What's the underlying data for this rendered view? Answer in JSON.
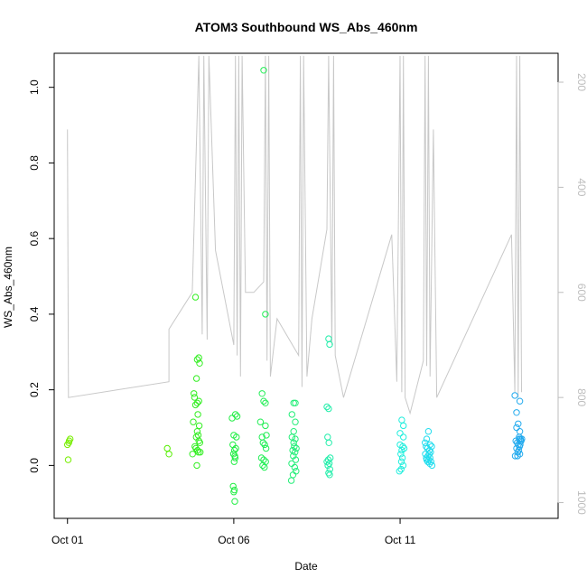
{
  "chart_data": {
    "type": "scatter",
    "title": "ATOM3 Southbound WS_Abs_460nm",
    "xlabel": "Date",
    "ylabel": "WS_Abs_460nm",
    "xlim": [
      -0.4,
      14.75
    ],
    "ylim": [
      -0.14,
      1.09
    ],
    "x_ticks": [
      {
        "value": 0,
        "label": "Oct 01"
      },
      {
        "value": 5,
        "label": "Oct 06"
      },
      {
        "value": 10,
        "label": "Oct 11"
      }
    ],
    "y_ticks": [
      0.0,
      0.2,
      0.4,
      0.6,
      0.8,
      1.0
    ],
    "y_tick_labels": [
      "0.0",
      "0.2",
      "0.4",
      "0.6",
      "0.8",
      "1.0"
    ],
    "right_axis": {
      "label": "",
      "reversed": true,
      "lim": [
        1030,
        145
      ],
      "ticks": [
        200,
        400,
        600,
        800,
        1000
      ],
      "tick_labels": [
        "200",
        "400",
        "600",
        "800",
        "1000"
      ],
      "color": "#bdbdbd"
    },
    "altitude_profile": [
      [
        0,
        330
      ],
      [
        0,
        290
      ],
      [
        0.03,
        800
      ],
      [
        3.05,
        770
      ],
      [
        3.05,
        670
      ],
      [
        3.75,
        600
      ],
      [
        3.95,
        150
      ],
      [
        4.05,
        680
      ],
      [
        4.1,
        150
      ],
      [
        4.2,
        690
      ],
      [
        4.25,
        150
      ],
      [
        4.45,
        520
      ],
      [
        5.0,
        700
      ],
      [
        5.05,
        150
      ],
      [
        5.1,
        720
      ],
      [
        5.15,
        150
      ],
      [
        5.2,
        760
      ],
      [
        5.25,
        150
      ],
      [
        5.35,
        600
      ],
      [
        5.6,
        600
      ],
      [
        5.9,
        580
      ],
      [
        5.95,
        150
      ],
      [
        6.0,
        730
      ],
      [
        6.05,
        150
      ],
      [
        6.1,
        760
      ],
      [
        6.3,
        650
      ],
      [
        6.95,
        720
      ],
      [
        7.0,
        150
      ],
      [
        7.05,
        780
      ],
      [
        7.1,
        150
      ],
      [
        7.2,
        760
      ],
      [
        7.35,
        650
      ],
      [
        7.8,
        480
      ],
      [
        7.85,
        150
      ],
      [
        7.95,
        700
      ],
      [
        8.0,
        150
      ],
      [
        8.05,
        720
      ],
      [
        8.3,
        800
      ],
      [
        9.75,
        490
      ],
      [
        9.9,
        770
      ],
      [
        10.0,
        150
      ],
      [
        10.05,
        790
      ],
      [
        10.1,
        150
      ],
      [
        10.15,
        800
      ],
      [
        10.3,
        830
      ],
      [
        10.7,
        730
      ],
      [
        10.75,
        150
      ],
      [
        10.8,
        740
      ],
      [
        10.85,
        150
      ],
      [
        10.9,
        760
      ],
      [
        11.0,
        290
      ],
      [
        11.1,
        800
      ],
      [
        13.35,
        490
      ],
      [
        13.45,
        790
      ],
      [
        13.5,
        150
      ],
      [
        13.55,
        800
      ],
      [
        13.6,
        150
      ],
      [
        13.65,
        790
      ]
    ],
    "series": [
      {
        "color": "#77ee00",
        "points": [
          [
            0.0,
            0.055
          ],
          [
            0.05,
            0.065
          ],
          [
            0.08,
            0.07
          ],
          [
            0.02,
            0.015
          ],
          [
            0.04,
            0.06
          ]
        ]
      },
      {
        "color": "#55ee00",
        "points": [
          [
            3.0,
            0.045
          ],
          [
            3.05,
            0.03
          ]
        ]
      },
      {
        "color": "#33ee22",
        "points": [
          [
            3.85,
            0.445
          ],
          [
            3.9,
            0.28
          ],
          [
            3.95,
            0.285
          ],
          [
            3.97,
            0.27
          ],
          [
            3.88,
            0.23
          ],
          [
            3.8,
            0.19
          ],
          [
            3.82,
            0.18
          ],
          [
            3.9,
            0.165
          ],
          [
            3.95,
            0.17
          ],
          [
            3.85,
            0.16
          ],
          [
            3.92,
            0.135
          ],
          [
            3.78,
            0.115
          ],
          [
            3.96,
            0.105
          ],
          [
            3.9,
            0.09
          ],
          [
            3.93,
            0.08
          ],
          [
            3.87,
            0.075
          ],
          [
            3.95,
            0.065
          ],
          [
            3.98,
            0.06
          ],
          [
            3.83,
            0.05
          ],
          [
            3.86,
            0.045
          ],
          [
            3.91,
            0.04
          ],
          [
            3.99,
            0.035
          ],
          [
            3.76,
            0.03
          ],
          [
            3.94,
            0.035
          ],
          [
            3.89,
            0.0
          ]
        ]
      },
      {
        "color": "#22ee44",
        "points": [
          [
            4.95,
            0.125
          ],
          [
            5.05,
            0.135
          ],
          [
            5.1,
            0.13
          ],
          [
            5.0,
            0.08
          ],
          [
            5.08,
            0.075
          ],
          [
            4.97,
            0.055
          ],
          [
            5.06,
            0.045
          ],
          [
            5.02,
            0.04
          ],
          [
            4.99,
            0.03
          ],
          [
            5.03,
            0.025
          ],
          [
            5.04,
            0.02
          ],
          [
            5.01,
            0.01
          ],
          [
            4.98,
            -0.055
          ],
          [
            5.02,
            -0.065
          ],
          [
            5.0,
            -0.07
          ],
          [
            5.03,
            -0.095
          ]
        ]
      },
      {
        "color": "#22ee55",
        "points": [
          [
            5.9,
            1.045
          ],
          [
            5.95,
            0.4
          ],
          [
            5.85,
            0.19
          ],
          [
            5.9,
            0.17
          ],
          [
            5.95,
            0.165
          ],
          [
            5.8,
            0.115
          ],
          [
            5.95,
            0.105
          ],
          [
            5.85,
            0.075
          ],
          [
            5.98,
            0.08
          ],
          [
            5.88,
            0.06
          ],
          [
            5.93,
            0.055
          ],
          [
            5.97,
            0.045
          ],
          [
            5.83,
            0.02
          ],
          [
            5.9,
            0.015
          ],
          [
            5.96,
            0.01
          ],
          [
            5.87,
            0.0
          ],
          [
            5.92,
            -0.005
          ]
        ]
      },
      {
        "color": "#22ee77",
        "points": [
          [
            6.8,
            0.165
          ],
          [
            6.85,
            0.165
          ],
          [
            6.75,
            0.135
          ],
          [
            6.85,
            0.115
          ],
          [
            6.8,
            0.09
          ],
          [
            6.75,
            0.075
          ],
          [
            6.85,
            0.07
          ],
          [
            6.8,
            0.06
          ],
          [
            6.82,
            0.05
          ],
          [
            6.88,
            0.045
          ],
          [
            6.77,
            0.04
          ],
          [
            6.84,
            0.035
          ],
          [
            6.79,
            0.025
          ],
          [
            6.86,
            0.015
          ],
          [
            6.74,
            0.005
          ],
          [
            6.83,
            -0.005
          ],
          [
            6.87,
            -0.015
          ],
          [
            6.78,
            -0.025
          ],
          [
            6.73,
            -0.04
          ]
        ]
      },
      {
        "color": "#22eeaa",
        "points": [
          [
            7.85,
            0.335
          ],
          [
            7.88,
            0.32
          ],
          [
            7.8,
            0.155
          ],
          [
            7.85,
            0.15
          ],
          [
            7.82,
            0.075
          ],
          [
            7.86,
            0.06
          ],
          [
            7.9,
            0.02
          ],
          [
            7.84,
            0.015
          ],
          [
            7.8,
            0.01
          ],
          [
            7.87,
            0.005
          ],
          [
            7.83,
            0.0
          ],
          [
            7.89,
            -0.01
          ],
          [
            7.85,
            -0.02
          ],
          [
            7.88,
            -0.025
          ]
        ]
      },
      {
        "color": "#22eedd",
        "points": [
          [
            10.05,
            0.12
          ],
          [
            10.1,
            0.105
          ],
          [
            10.0,
            0.085
          ],
          [
            10.1,
            0.075
          ],
          [
            10.0,
            0.055
          ],
          [
            10.08,
            0.05
          ],
          [
            10.05,
            0.04
          ],
          [
            10.12,
            0.045
          ],
          [
            10.02,
            0.03
          ],
          [
            10.07,
            0.02
          ],
          [
            10.04,
            0.01
          ],
          [
            10.09,
            0.0
          ],
          [
            10.03,
            -0.01
          ],
          [
            9.98,
            -0.015
          ]
        ]
      },
      {
        "color": "#22ddee",
        "points": [
          [
            10.85,
            0.09
          ],
          [
            10.8,
            0.07
          ],
          [
            10.75,
            0.06
          ],
          [
            10.9,
            0.055
          ],
          [
            10.78,
            0.05
          ],
          [
            10.95,
            0.05
          ],
          [
            10.82,
            0.045
          ],
          [
            10.88,
            0.04
          ],
          [
            10.92,
            0.035
          ],
          [
            10.76,
            0.03
          ],
          [
            10.84,
            0.025
          ],
          [
            10.9,
            0.02
          ],
          [
            10.8,
            0.015
          ],
          [
            10.86,
            0.015
          ],
          [
            10.93,
            0.01
          ],
          [
            10.83,
            0.01
          ],
          [
            10.89,
            0.005
          ],
          [
            10.96,
            0.0
          ],
          [
            10.79,
            0.02
          ],
          [
            10.87,
            0.03
          ]
        ]
      },
      {
        "color": "#22aaee",
        "points": [
          [
            13.45,
            0.185
          ],
          [
            13.6,
            0.17
          ],
          [
            13.5,
            0.14
          ],
          [
            13.55,
            0.11
          ],
          [
            13.5,
            0.1
          ],
          [
            13.6,
            0.09
          ],
          [
            13.58,
            0.075
          ],
          [
            13.62,
            0.07
          ],
          [
            13.66,
            0.07
          ],
          [
            13.48,
            0.065
          ],
          [
            13.63,
            0.065
          ],
          [
            13.52,
            0.06
          ],
          [
            13.55,
            0.055
          ],
          [
            13.61,
            0.055
          ],
          [
            13.59,
            0.05
          ],
          [
            13.5,
            0.045
          ],
          [
            13.57,
            0.04
          ],
          [
            13.54,
            0.035
          ],
          [
            13.6,
            0.03
          ],
          [
            13.46,
            0.025
          ],
          [
            13.53,
            0.025
          ],
          [
            13.58,
            0.07
          ],
          [
            13.64,
            0.065
          ]
        ]
      }
    ]
  }
}
